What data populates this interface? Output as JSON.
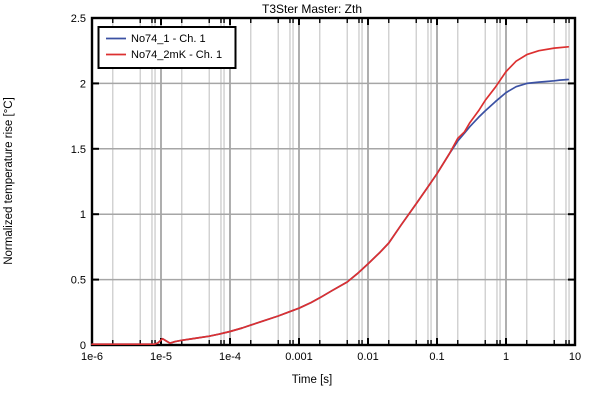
{
  "chart_data": {
    "type": "line",
    "title": "T3Ster Master: Zth",
    "xlabel": "Time [s]",
    "ylabel": "Normalized temperature rise [°C]",
    "x_scale": "log",
    "xlim": [
      1e-06,
      10
    ],
    "ylim": [
      0,
      2.5
    ],
    "grid": true,
    "legend_position": "top-left",
    "x_ticks": [
      {
        "t": 1e-06,
        "label": "1e-6"
      },
      {
        "t": 1e-05,
        "label": "1e-5"
      },
      {
        "t": 0.0001,
        "label": "1e-4"
      },
      {
        "t": 0.001,
        "label": "0.001"
      },
      {
        "t": 0.01,
        "label": "0.01"
      },
      {
        "t": 0.1,
        "label": "0.1"
      },
      {
        "t": 1,
        "label": "1"
      },
      {
        "t": 10,
        "label": "10"
      }
    ],
    "x_minor_multipliers": [
      2,
      5,
      7.4,
      8.2
    ],
    "y_ticks": [
      {
        "v": 0,
        "label": "0"
      },
      {
        "v": 0.5,
        "label": "0.5"
      },
      {
        "v": 1,
        "label": "1"
      },
      {
        "v": 1.5,
        "label": "1.5"
      },
      {
        "v": 2,
        "label": "2"
      },
      {
        "v": 2.5,
        "label": "2.5"
      }
    ],
    "colors": {
      "grid_minor": "#cccccc",
      "grid_major": "#a6a6a6",
      "frame": "#000000"
    },
    "series": [
      {
        "name": "No74_1 - Ch. 1",
        "color": "#3b51a3",
        "points": [
          [
            1e-06,
            0
          ],
          [
            2e-06,
            0
          ],
          [
            4e-06,
            0
          ],
          [
            6e-06,
            0
          ],
          [
            8e-06,
            0.004
          ],
          [
            9e-06,
            0.015
          ],
          [
            1.05e-05,
            0.048
          ],
          [
            1.2e-05,
            0.03
          ],
          [
            1.35e-05,
            0.014
          ],
          [
            1.6e-05,
            0.026
          ],
          [
            2e-05,
            0.036
          ],
          [
            3e-05,
            0.05
          ],
          [
            5e-05,
            0.067
          ],
          [
            7e-05,
            0.083
          ],
          [
            0.0001,
            0.103
          ],
          [
            0.00015,
            0.13
          ],
          [
            0.0002,
            0.152
          ],
          [
            0.0003,
            0.183
          ],
          [
            0.0005,
            0.222
          ],
          [
            0.0007,
            0.251
          ],
          [
            0.001,
            0.281
          ],
          [
            0.0015,
            0.325
          ],
          [
            0.002,
            0.361
          ],
          [
            0.003,
            0.415
          ],
          [
            0.005,
            0.482
          ],
          [
            0.007,
            0.545
          ],
          [
            0.01,
            0.62
          ],
          [
            0.015,
            0.71
          ],
          [
            0.02,
            0.78
          ],
          [
            0.03,
            0.915
          ],
          [
            0.05,
            1.08
          ],
          [
            0.07,
            1.19
          ],
          [
            0.1,
            1.31
          ],
          [
            0.15,
            1.46
          ],
          [
            0.2,
            1.56
          ],
          [
            0.25,
            1.62
          ],
          [
            0.3,
            1.67
          ],
          [
            0.4,
            1.74
          ],
          [
            0.5,
            1.79
          ],
          [
            0.7,
            1.86
          ],
          [
            1,
            1.93
          ],
          [
            1.4,
            1.975
          ],
          [
            2,
            2.0
          ],
          [
            3,
            2.01
          ],
          [
            5,
            2.02
          ],
          [
            6,
            2.025
          ],
          [
            8,
            2.03
          ]
        ]
      },
      {
        "name": "No74_2mK - Ch. 1",
        "color": "#dc3030",
        "points": [
          [
            1e-06,
            0
          ],
          [
            2e-06,
            0
          ],
          [
            4e-06,
            0
          ],
          [
            6e-06,
            0
          ],
          [
            8e-06,
            0.004
          ],
          [
            9e-06,
            0.015
          ],
          [
            1.05e-05,
            0.048
          ],
          [
            1.2e-05,
            0.03
          ],
          [
            1.35e-05,
            0.014
          ],
          [
            1.6e-05,
            0.026
          ],
          [
            2e-05,
            0.036
          ],
          [
            3e-05,
            0.05
          ],
          [
            5e-05,
            0.067
          ],
          [
            7e-05,
            0.083
          ],
          [
            0.0001,
            0.103
          ],
          [
            0.00015,
            0.13
          ],
          [
            0.0002,
            0.152
          ],
          [
            0.0003,
            0.183
          ],
          [
            0.0005,
            0.222
          ],
          [
            0.0007,
            0.251
          ],
          [
            0.001,
            0.281
          ],
          [
            0.0015,
            0.325
          ],
          [
            0.002,
            0.361
          ],
          [
            0.003,
            0.415
          ],
          [
            0.005,
            0.482
          ],
          [
            0.007,
            0.545
          ],
          [
            0.01,
            0.62
          ],
          [
            0.015,
            0.71
          ],
          [
            0.02,
            0.78
          ],
          [
            0.03,
            0.915
          ],
          [
            0.05,
            1.08
          ],
          [
            0.07,
            1.19
          ],
          [
            0.1,
            1.31
          ],
          [
            0.15,
            1.46
          ],
          [
            0.2,
            1.58
          ],
          [
            0.25,
            1.63
          ],
          [
            0.3,
            1.7
          ],
          [
            0.4,
            1.79
          ],
          [
            0.5,
            1.87
          ],
          [
            0.7,
            1.97
          ],
          [
            1,
            2.09
          ],
          [
            1.4,
            2.17
          ],
          [
            2,
            2.22
          ],
          [
            3,
            2.25
          ],
          [
            5,
            2.27
          ],
          [
            8,
            2.28
          ]
        ]
      }
    ]
  }
}
